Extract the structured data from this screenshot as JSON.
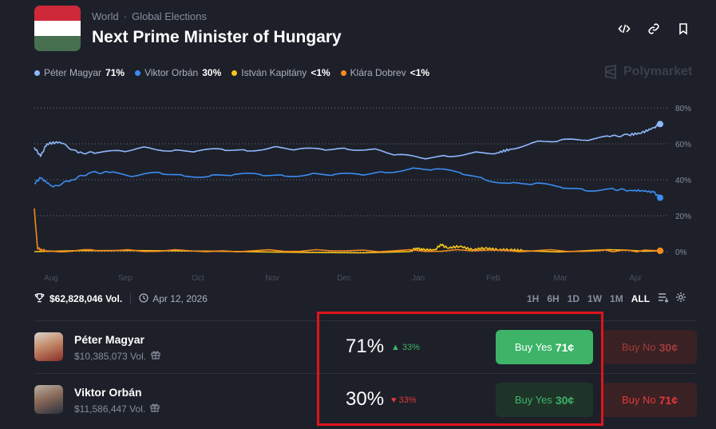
{
  "header": {
    "category": "World",
    "subcategory": "Global Elections",
    "title": "Next Prime Minister of Hungary",
    "flag_colors": [
      "#ce2939",
      "#ffffff",
      "#477050"
    ]
  },
  "brand": {
    "name": "Polymarket"
  },
  "legend": [
    {
      "name": "Péter Magyar",
      "value": "71%",
      "color": "#8fb8ff"
    },
    {
      "name": "Viktor Orbán",
      "value": "30%",
      "color": "#3b8cf0"
    },
    {
      "name": "István Kapitány",
      "value": "<1%",
      "color": "#f5c518"
    },
    {
      "name": "Klára Dobrev",
      "value": "<1%",
      "color": "#f58a1f"
    }
  ],
  "stats": {
    "volume": "$62,828,046 Vol.",
    "end_date": "Apr 12, 2026"
  },
  "time_ranges": [
    "1H",
    "6H",
    "1D",
    "1W",
    "1M",
    "ALL"
  ],
  "active_range": "ALL",
  "outcomes": [
    {
      "name": "Péter Magyar",
      "volume": "$10,385,073 Vol.",
      "probability": "71%",
      "change": "33%",
      "direction": "up",
      "buy_yes_label": "Buy Yes",
      "buy_yes_price": "71¢",
      "buy_no_label": "Buy No",
      "buy_no_price": "30¢"
    },
    {
      "name": "Viktor Orbán",
      "volume": "$11,586,447 Vol.",
      "probability": "30%",
      "change": "33%",
      "direction": "down",
      "buy_yes_label": "Buy Yes",
      "buy_yes_price": "30¢",
      "buy_no_label": "Buy No",
      "buy_no_price": "71¢"
    }
  ],
  "colors": {
    "background": "#1d2029",
    "green": "#3db468",
    "red": "#e23939",
    "muted": "#858d9d"
  },
  "chart_data": {
    "type": "line",
    "x_tick_labels": [
      "Aug",
      "Sep",
      "Oct",
      "Nov",
      "Dec",
      "Jan",
      "Feb",
      "Mar",
      "Apr"
    ],
    "y_tick_labels": [
      "80%",
      "60%",
      "40%",
      "20%",
      "0%"
    ],
    "ylim": [
      0,
      80
    ],
    "grid": true,
    "series": [
      {
        "name": "Péter Magyar",
        "color": "#8fb8ff",
        "x": [
          0,
          0.01,
          0.02,
          0.04,
          0.07,
          0.1,
          0.14,
          0.18,
          0.22,
          0.26,
          0.3,
          0.34,
          0.38,
          0.42,
          0.46,
          0.5,
          0.54,
          0.58,
          0.62,
          0.66,
          0.7,
          0.74,
          0.76,
          0.8,
          0.84,
          0.88,
          0.92,
          0.95,
          0.97,
          0.99,
          1.0
        ],
        "y": [
          58,
          53,
          60,
          61,
          55,
          55,
          56,
          58,
          56,
          56,
          57,
          56,
          58,
          57,
          57,
          57,
          57,
          54,
          52,
          53,
          55,
          55,
          57,
          61,
          62,
          62,
          64,
          65,
          66,
          69,
          71
        ]
      },
      {
        "name": "Viktor Orbán",
        "color": "#3b8cf0",
        "x": [
          0,
          0.01,
          0.03,
          0.06,
          0.09,
          0.12,
          0.16,
          0.2,
          0.24,
          0.28,
          0.32,
          0.36,
          0.4,
          0.44,
          0.48,
          0.52,
          0.56,
          0.6,
          0.64,
          0.68,
          0.72,
          0.76,
          0.8,
          0.84,
          0.88,
          0.92,
          0.95,
          0.97,
          0.99,
          1.0
        ],
        "y": [
          38,
          41,
          36,
          40,
          44,
          44,
          42,
          44,
          42,
          42,
          43,
          43,
          42,
          43,
          43,
          43,
          44,
          46,
          46,
          44,
          40,
          38,
          38,
          36,
          34,
          35,
          34,
          34,
          33,
          30
        ]
      },
      {
        "name": "István Kapitány",
        "color": "#f5c518",
        "x": [
          0,
          0.6,
          0.61,
          0.62,
          0.64,
          0.65,
          0.66,
          0.68,
          0.7,
          0.72,
          0.74,
          0.76,
          0.78,
          1.0
        ],
        "y": [
          0,
          0,
          2,
          1,
          1,
          4,
          2,
          3,
          1,
          2,
          1,
          1,
          0.5,
          0.5
        ]
      },
      {
        "name": "Klára Dobrev",
        "color": "#f58a1f",
        "x": [
          0,
          0.005,
          0.01,
          0.02,
          0.1,
          0.3,
          0.5,
          0.7,
          0.9,
          1.0
        ],
        "y": [
          24,
          2,
          1,
          0.5,
          0.5,
          0.5,
          0.5,
          0.5,
          0.5,
          0.5
        ]
      }
    ]
  }
}
